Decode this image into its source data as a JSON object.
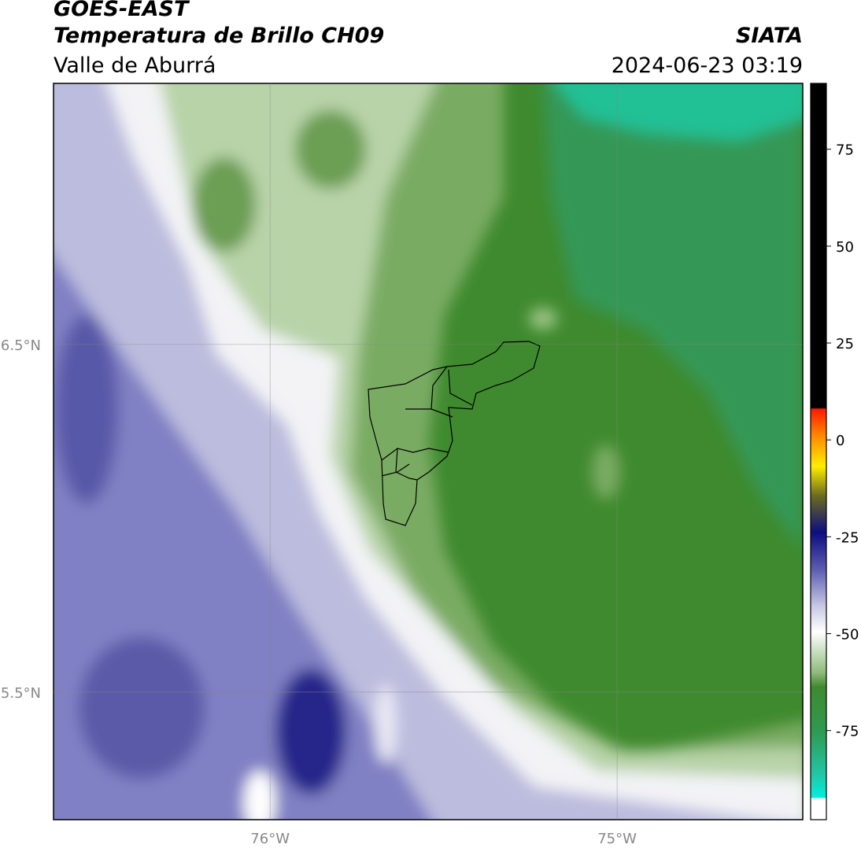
{
  "header": {
    "title": "GOES-EAST",
    "subtitle": "Temperatura de Brillo CH09",
    "region": "Valle de Aburrá",
    "source": "SIATA",
    "timestamp": "2024-06-23 03:19"
  },
  "map": {
    "xlim": [
      -76.624,
      -74.465
    ],
    "ylim": [
      5.133,
      7.251
    ],
    "xticks": [
      {
        "value": -76,
        "label": "76°W"
      },
      {
        "value": -75,
        "label": "75°W"
      }
    ],
    "yticks": [
      {
        "value": 6.5,
        "label": "6.5°N"
      },
      {
        "value": 5.5,
        "label": "5.5°N"
      }
    ],
    "grid": true
  },
  "colorbar": {
    "lim": [
      -98,
      92
    ],
    "ticks": [
      75,
      50,
      25,
      0,
      -25,
      -50,
      -75
    ]
  }
}
